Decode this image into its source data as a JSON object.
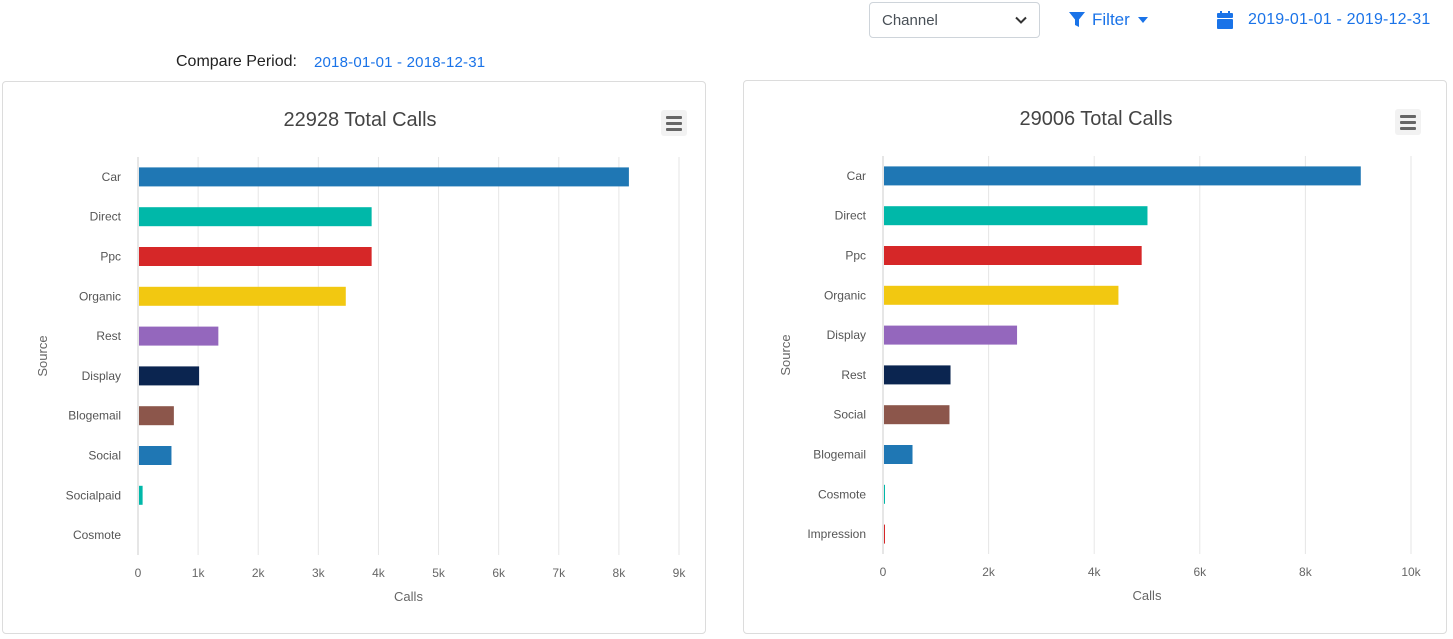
{
  "toolbar": {
    "channel_select": {
      "value": "Channel",
      "icon": "chevron-down-icon"
    },
    "filter": {
      "label": "Filter",
      "icon": "funnel-icon",
      "caret_icon": "caret-down-icon"
    },
    "date_range": {
      "value": "2019-01-01 - 2019-12-31",
      "icon": "calendar-icon"
    },
    "accent_color": "#1a73e8"
  },
  "compare": {
    "label": "Compare Period:",
    "value": "2018-01-01 - 2018-12-31"
  },
  "chart_data": [
    {
      "type": "bar",
      "orientation": "horizontal",
      "title": "22928 Total Calls",
      "xlabel": "Calls",
      "ylabel": "Source",
      "categories": [
        "Car",
        "Direct",
        "Ppc",
        "Organic",
        "Rest",
        "Display",
        "Blogemail",
        "Social",
        "Socialpaid",
        "Cosmote"
      ],
      "values": [
        8150,
        3870,
        3870,
        3440,
        1320,
        1000,
        580,
        540,
        60,
        0
      ],
      "colors": [
        "#1f77b4",
        "#00b8a9",
        "#d62728",
        "#f2c811",
        "#9467bd",
        "#0b2550",
        "#8c564b",
        "#1f77b4",
        "#00b8a9",
        "#d62728"
      ],
      "xlim": [
        0,
        9000
      ],
      "xticks": [
        "0",
        "1k",
        "2k",
        "3k",
        "4k",
        "5k",
        "6k",
        "7k",
        "8k",
        "9k"
      ],
      "grid": true,
      "legend": "none"
    },
    {
      "type": "bar",
      "orientation": "horizontal",
      "title": "29006 Total Calls",
      "xlabel": "Calls",
      "ylabel": "Source",
      "categories": [
        "Car",
        "Direct",
        "Ppc",
        "Organic",
        "Display",
        "Rest",
        "Social",
        "Blogemail",
        "Cosmote",
        "Impression"
      ],
      "values": [
        9030,
        4990,
        4880,
        4440,
        2520,
        1260,
        1240,
        540,
        5,
        5
      ],
      "colors": [
        "#1f77b4",
        "#00b8a9",
        "#d62728",
        "#f2c811",
        "#9467bd",
        "#0b2550",
        "#8c564b",
        "#1f77b4",
        "#00b8a9",
        "#d62728"
      ],
      "xlim": [
        0,
        10000
      ],
      "xticks": [
        "0",
        "2k",
        "4k",
        "6k",
        "8k",
        "10k"
      ],
      "grid": true,
      "legend": "none"
    }
  ]
}
